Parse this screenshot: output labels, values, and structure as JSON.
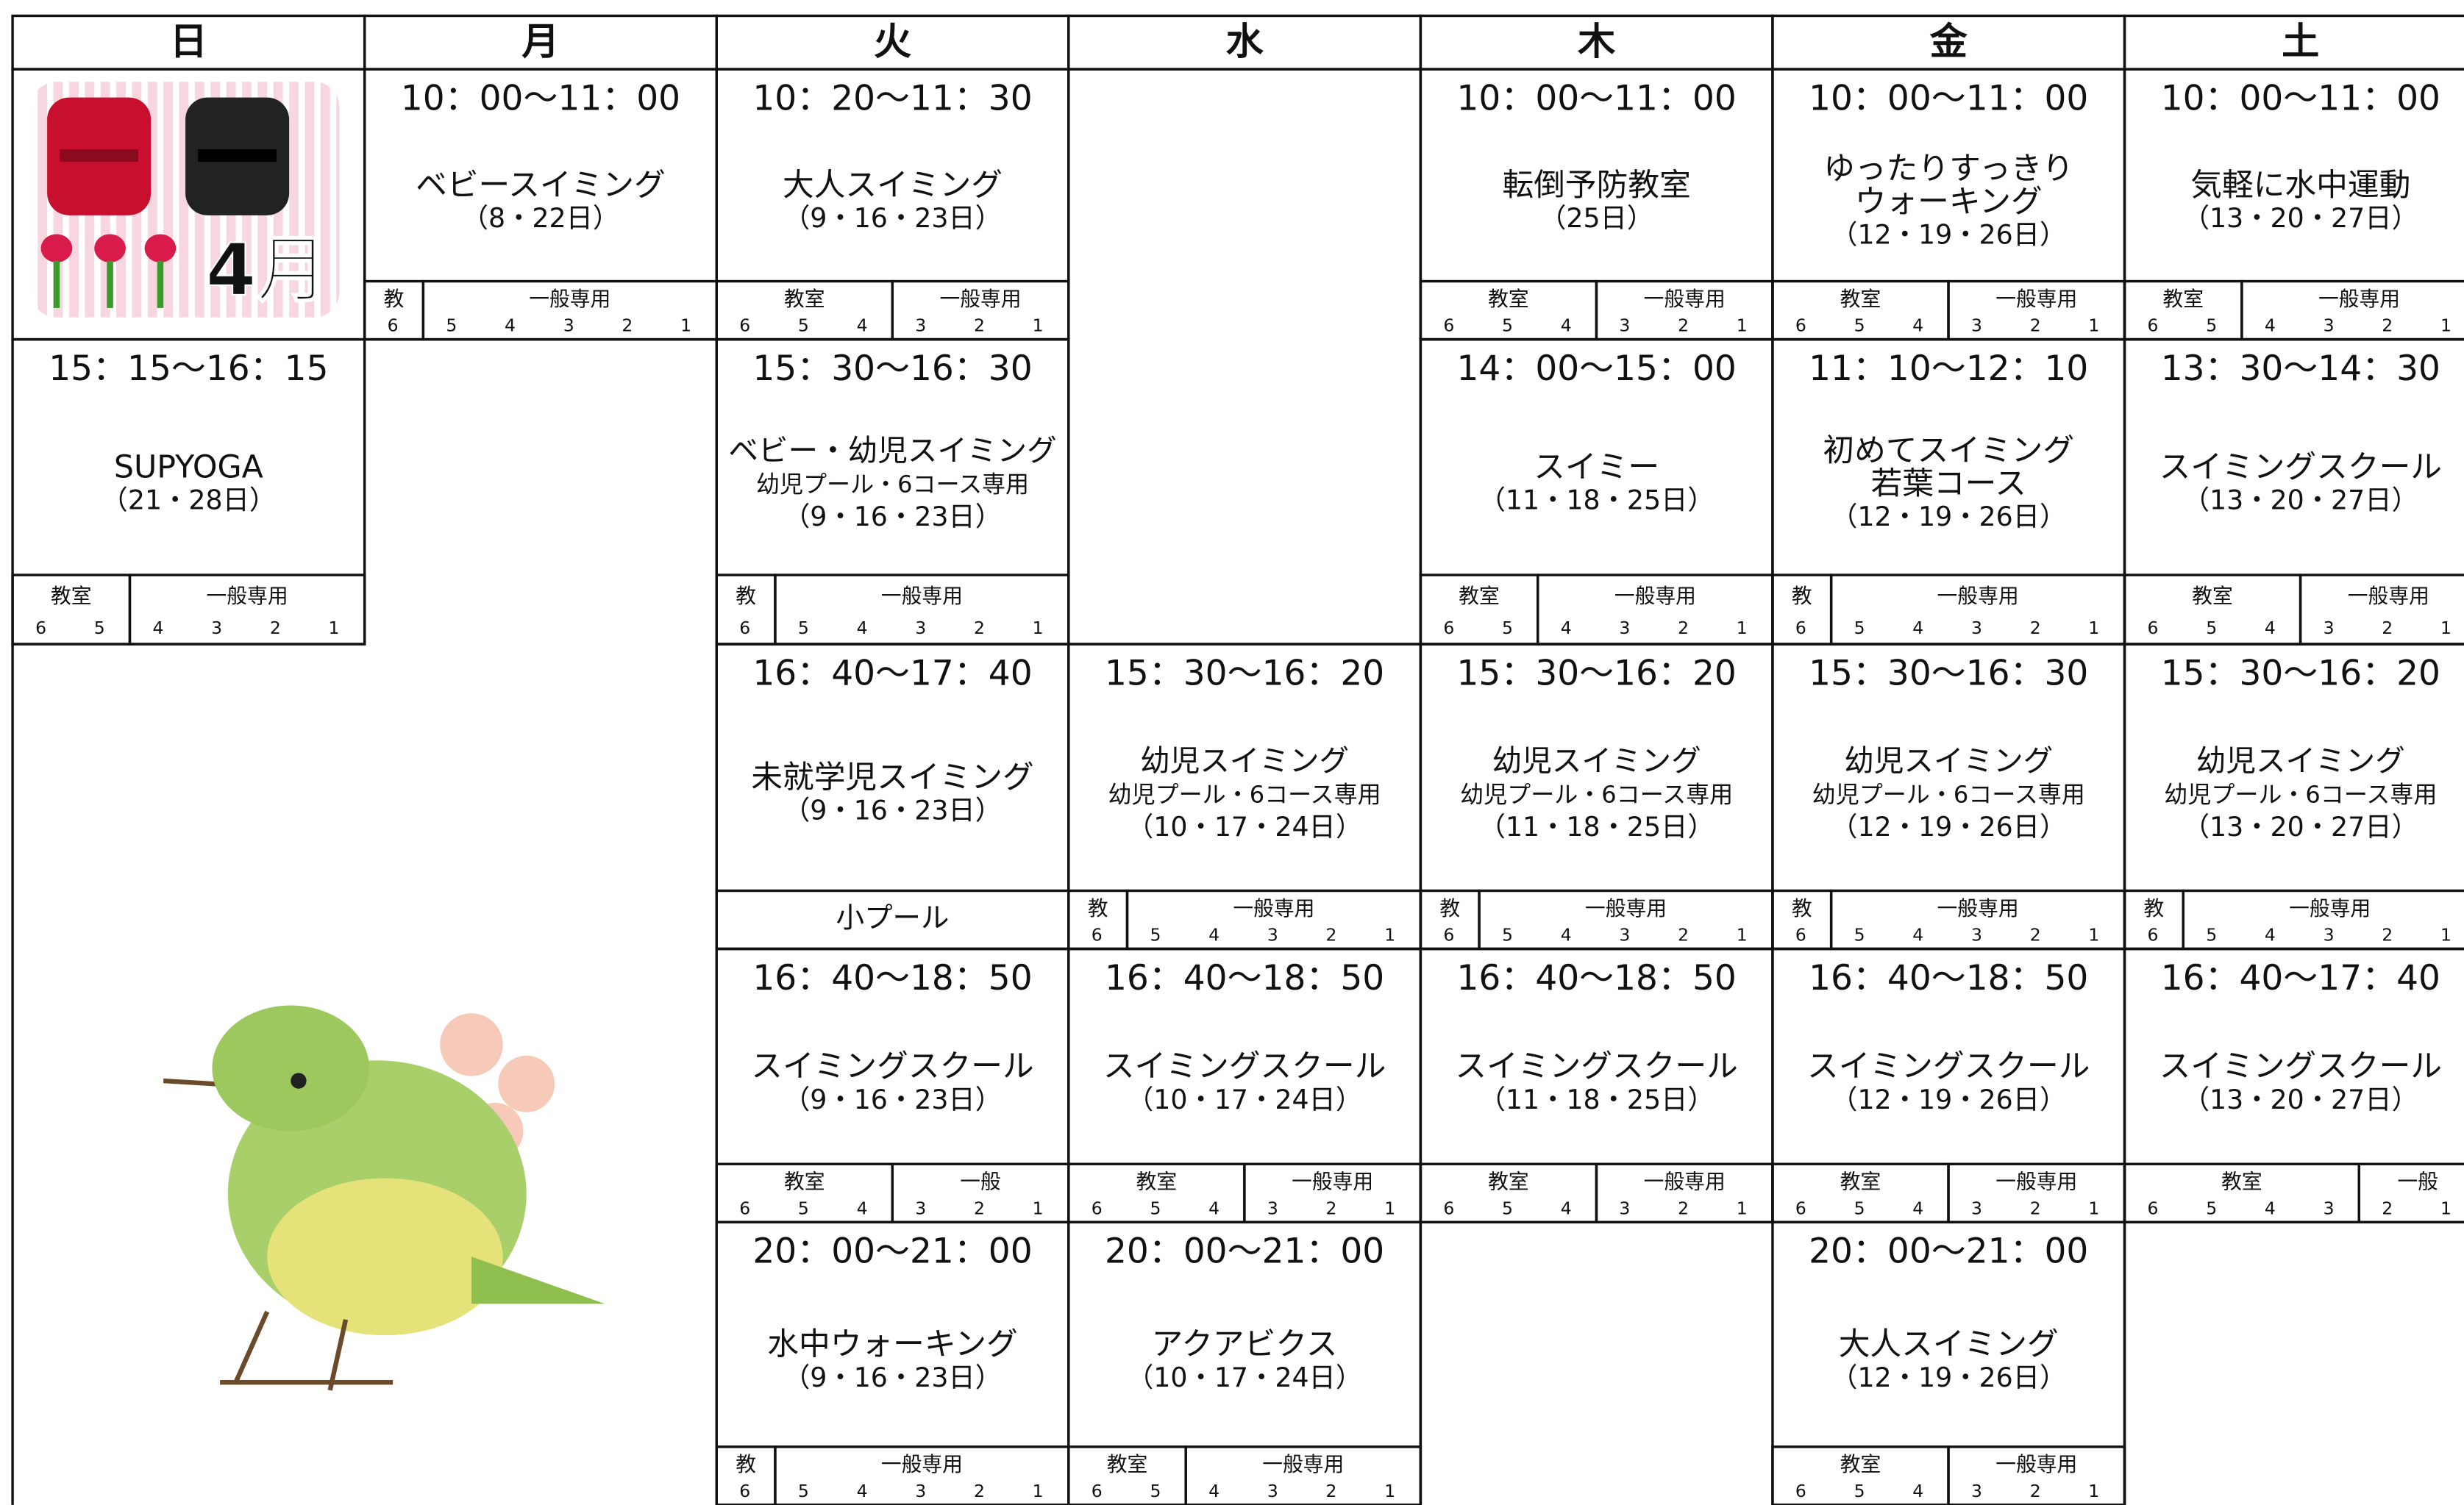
{
  "days": [
    "日",
    "月",
    "火",
    "水",
    "木",
    "金",
    "土"
  ],
  "month_badge": "4月",
  "events": [
    {
      "time": "10：00～11：00",
      "title": [
        "ベビースイミング"
      ],
      "note": [],
      "dates": "（8・22日）",
      "bar": {
        "left": "教",
        "right": "一般専用",
        "left_lanes": [
          6
        ],
        "right_lanes": [
          5,
          4,
          3,
          2,
          1
        ]
      }
    },
    {
      "time": "10：20～11：30",
      "title": [
        "大人スイミング"
      ],
      "note": [],
      "dates": "（9・16・23日）",
      "bar": {
        "left": "教室",
        "right": "一般専用",
        "left_lanes": [
          6,
          5,
          4
        ],
        "right_lanes": [
          3,
          2,
          1
        ]
      }
    },
    {
      "time": "10：00～11：00",
      "title": [
        "転倒予防教室"
      ],
      "note": [],
      "dates": "（25日）",
      "bar": {
        "left": "教室",
        "right": "一般専用",
        "left_lanes": [
          6,
          5,
          4
        ],
        "right_lanes": [
          3,
          2,
          1
        ]
      }
    },
    {
      "time": "10：00～11：00",
      "title": [
        "ゆったりすっきり",
        "ウォーキング"
      ],
      "note": [],
      "dates": "（12・19・26日）",
      "bar": {
        "left": "教室",
        "right": "一般専用",
        "left_lanes": [
          6,
          5,
          4
        ],
        "right_lanes": [
          3,
          2,
          1
        ]
      }
    },
    {
      "time": "10：00～11：00",
      "title": [
        "気軽に水中運動"
      ],
      "note": [],
      "dates": "（13・20・27日）",
      "bar": {
        "left": "教室",
        "right": "一般専用",
        "left_lanes": [
          6,
          5
        ],
        "right_lanes": [
          4,
          3,
          2,
          1
        ]
      }
    },
    {
      "time": "15：15～16：15",
      "title": [
        "SUPYOGA"
      ],
      "note": [],
      "dates": "（21・28日）",
      "bar": {
        "left": "教室",
        "right": "一般専用",
        "left_lanes": [
          6,
          5
        ],
        "right_lanes": [
          4,
          3,
          2,
          1
        ]
      }
    },
    {
      "time": "15：30～16：30",
      "title": [
        "ベビー・幼児スイミング"
      ],
      "note": [
        "幼児プール・6コース専用"
      ],
      "dates": "（9・16・23日）",
      "bar": {
        "left": "教",
        "right": "一般専用",
        "left_lanes": [
          6
        ],
        "right_lanes": [
          5,
          4,
          3,
          2,
          1
        ]
      }
    },
    {
      "time": "14：00～15：00",
      "title": [
        "スイミー"
      ],
      "note": [],
      "dates": "（11・18・25日）",
      "bar": {
        "left": "教室",
        "right": "一般専用",
        "left_lanes": [
          6,
          5
        ],
        "right_lanes": [
          4,
          3,
          2,
          1
        ]
      }
    },
    {
      "time": "11：10～12：10",
      "title": [
        "初めてスイミング",
        "若葉コース"
      ],
      "note": [],
      "dates": "（12・19・26日）",
      "bar": {
        "left": "教",
        "right": "一般専用",
        "left_lanes": [
          6
        ],
        "right_lanes": [
          5,
          4,
          3,
          2,
          1
        ]
      }
    },
    {
      "time": "13：30～14：30",
      "title": [
        "スイミングスクール"
      ],
      "note": [],
      "dates": "（13・20・27日）",
      "bar": {
        "left": "教室",
        "right": "一般専用",
        "left_lanes": [
          6,
          5,
          4
        ],
        "right_lanes": [
          3,
          2,
          1
        ]
      }
    },
    {
      "time": "16：40～17：40",
      "title": [
        "未就学児スイミング"
      ],
      "note": [],
      "dates": "（9・16・23日）",
      "pool": "小プール"
    },
    {
      "time": "15：30～16：20",
      "title": [
        "幼児スイミング"
      ],
      "note": [
        "幼児プール・6コース専用"
      ],
      "dates": "（10・17・24日）",
      "bar": {
        "left": "教",
        "right": "一般専用",
        "left_lanes": [
          6
        ],
        "right_lanes": [
          5,
          4,
          3,
          2,
          1
        ]
      }
    },
    {
      "time": "15：30～16：20",
      "title": [
        "幼児スイミング"
      ],
      "note": [
        "幼児プール・6コース専用"
      ],
      "dates": "（11・18・25日）",
      "bar": {
        "left": "教",
        "right": "一般専用",
        "left_lanes": [
          6
        ],
        "right_lanes": [
          5,
          4,
          3,
          2,
          1
        ]
      }
    },
    {
      "time": "15：30～16：30",
      "title": [
        "幼児スイミング"
      ],
      "note": [
        "幼児プール・6コース専用"
      ],
      "dates": "（12・19・26日）",
      "bar": {
        "left": "教",
        "right": "一般専用",
        "left_lanes": [
          6
        ],
        "right_lanes": [
          5,
          4,
          3,
          2,
          1
        ]
      }
    },
    {
      "time": "15：30～16：20",
      "title": [
        "幼児スイミング"
      ],
      "note": [
        "幼児プール・6コース専用"
      ],
      "dates": "（13・20・27日）",
      "bar": {
        "left": "教",
        "right": "一般専用",
        "left_lanes": [
          6
        ],
        "right_lanes": [
          5,
          4,
          3,
          2,
          1
        ]
      }
    },
    {
      "time": "16：40～18：50",
      "title": [
        "スイミングスクール"
      ],
      "note": [],
      "dates": "（9・16・23日）",
      "bar": {
        "left": "教室",
        "right": "一般",
        "left_lanes": [
          6,
          5,
          4
        ],
        "right_lanes": [
          3,
          2,
          1
        ]
      }
    },
    {
      "time": "16：40～18：50",
      "title": [
        "スイミングスクール"
      ],
      "note": [],
      "dates": "（10・17・24日）",
      "bar": {
        "left": "教室",
        "right": "一般専用",
        "left_lanes": [
          6,
          5,
          4
        ],
        "right_lanes": [
          3,
          2,
          1
        ]
      }
    },
    {
      "time": "16：40～18：50",
      "title": [
        "スイミングスクール"
      ],
      "note": [],
      "dates": "（11・18・25日）",
      "bar": {
        "left": "教室",
        "right": "一般専用",
        "left_lanes": [
          6,
          5,
          4
        ],
        "right_lanes": [
          3,
          2,
          1
        ]
      }
    },
    {
      "time": "16：40～18：50",
      "title": [
        "スイミングスクール"
      ],
      "note": [],
      "dates": "（12・19・26日）",
      "bar": {
        "left": "教室",
        "right": "一般専用",
        "left_lanes": [
          6,
          5,
          4
        ],
        "right_lanes": [
          3,
          2,
          1
        ]
      }
    },
    {
      "time": "16：40～17：40",
      "title": [
        "スイミングスクール"
      ],
      "note": [],
      "dates": "（13・20・27日）",
      "bar": {
        "left": "教室",
        "right": "一般",
        "left_lanes": [
          6,
          5,
          4,
          3
        ],
        "right_lanes": [
          2,
          1
        ]
      }
    },
    {
      "time": "20：00～21：00",
      "title": [
        "水中ウォーキング"
      ],
      "note": [],
      "dates": "（9・16・23日）",
      "bar": {
        "left": "教",
        "right": "一般専用",
        "left_lanes": [
          6
        ],
        "right_lanes": [
          5,
          4,
          3,
          2,
          1
        ]
      }
    },
    {
      "time": "20：00～21：00",
      "title": [
        "アクアビクス"
      ],
      "note": [],
      "dates": "（10・17・24日）",
      "bar": {
        "left": "教室",
        "right": "一般専用",
        "left_lanes": [
          6,
          5
        ],
        "right_lanes": [
          4,
          3,
          2,
          1
        ]
      }
    },
    {
      "time": "20：00～21：00",
      "title": [
        "大人スイミング"
      ],
      "note": [],
      "dates": "（12・19・26日）",
      "bar": {
        "left": "教室",
        "right": "一般専用",
        "left_lanes": [
          6,
          5,
          4
        ],
        "right_lanes": [
          3,
          2,
          1
        ]
      }
    }
  ]
}
